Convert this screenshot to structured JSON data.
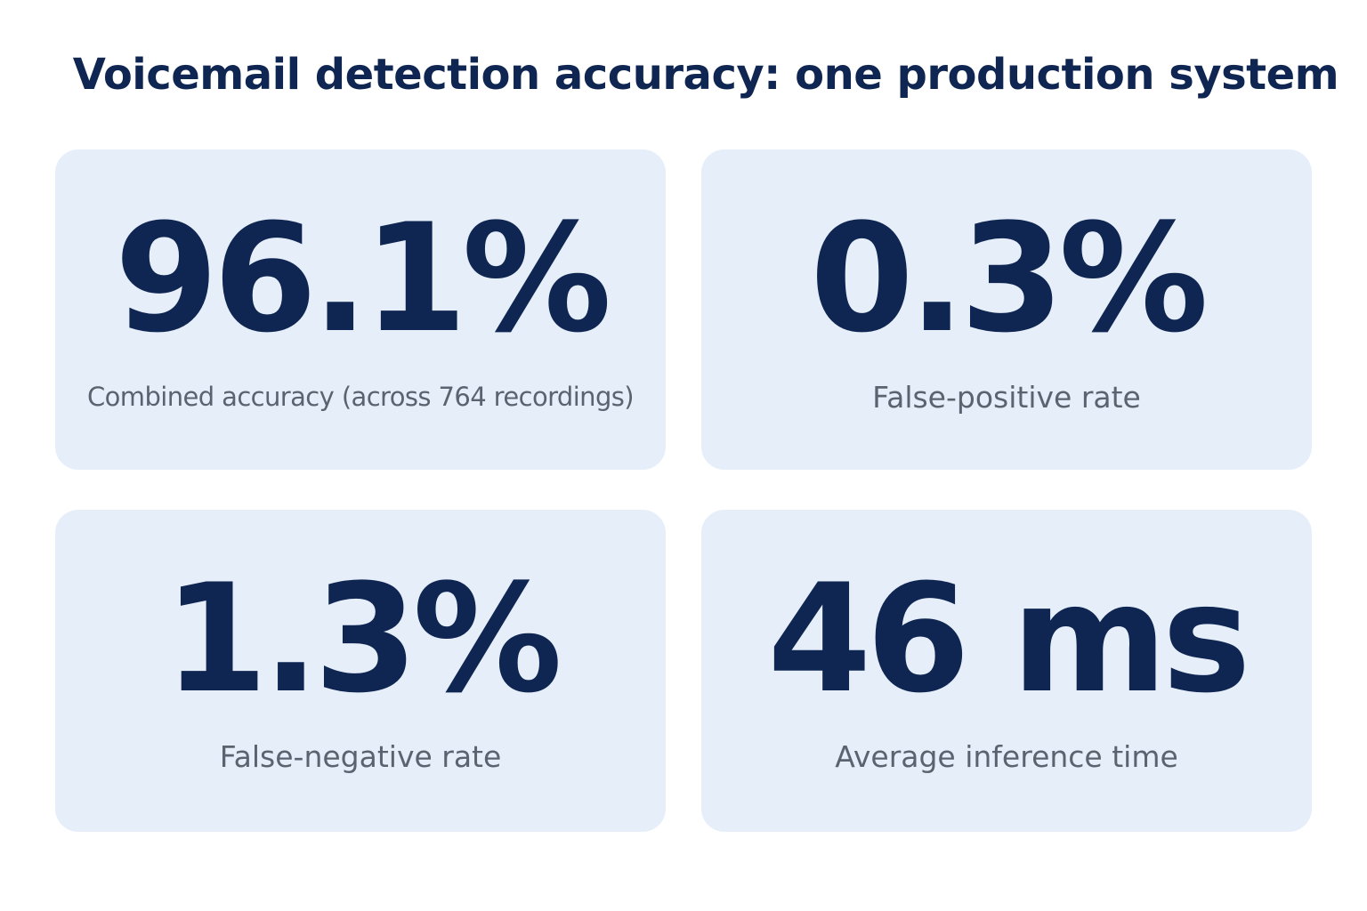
{
  "title": "Voicemail detection accuracy: one production system",
  "stats": [
    {
      "value": "96.1%",
      "label": "Combined accuracy (across 764 recordings)"
    },
    {
      "value": "0.3%",
      "label": "False-positive rate"
    },
    {
      "value": "1.3%",
      "label": "False-negative rate"
    },
    {
      "value": "46 ms",
      "label": "Average inference time"
    }
  ],
  "colors": {
    "background": "#ffffff",
    "card_background": "#e6eef9",
    "value_text": "#0f2652",
    "label_text": "#5c6370"
  }
}
